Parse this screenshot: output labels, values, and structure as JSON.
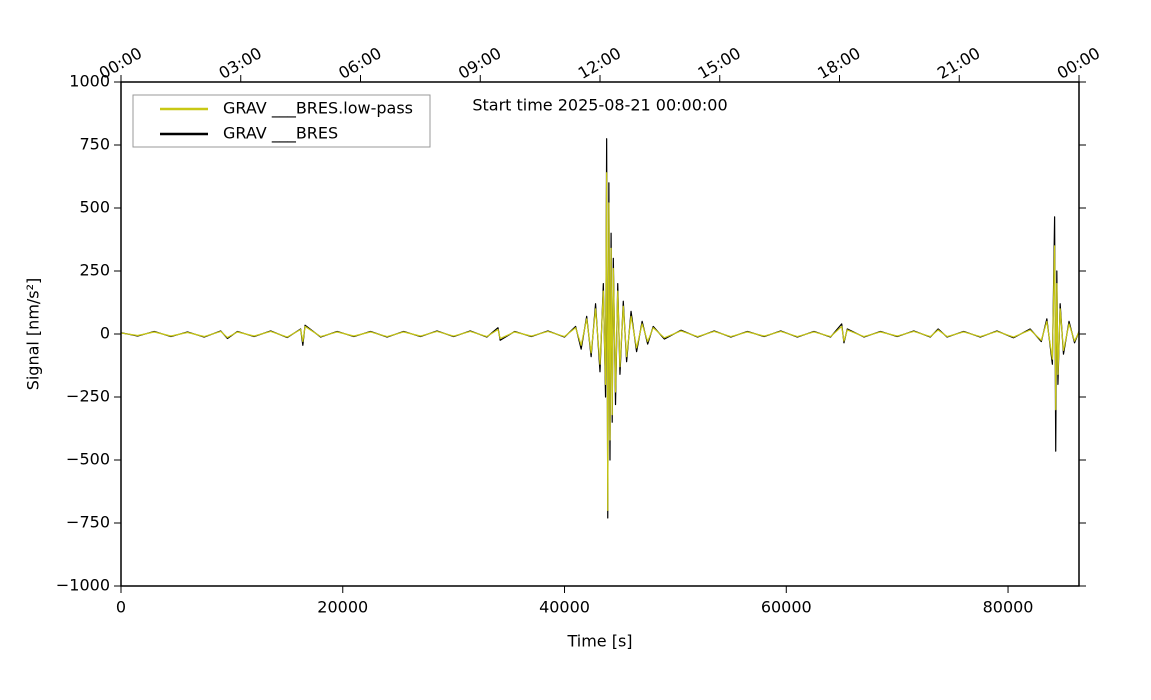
{
  "chart_data": {
    "type": "line",
    "annotation": "Start time 2025-08-21 00:00:00",
    "xlabel": "Time [s]",
    "ylabel": "Signal [nm/s²]",
    "xlim": [
      0,
      86400
    ],
    "ylim": [
      -1000,
      1000
    ],
    "xticks": [
      0,
      20000,
      40000,
      60000,
      80000
    ],
    "yticks": [
      {
        "value": -1000,
        "label": "−1000"
      },
      {
        "value": -750,
        "label": "−750"
      },
      {
        "value": -500,
        "label": "−500"
      },
      {
        "value": -250,
        "label": "−250"
      },
      0,
      250,
      500,
      750,
      1000
    ],
    "x2ticks": [
      {
        "value": 0,
        "label": "00:00"
      },
      {
        "value": 10800,
        "label": "03:00"
      },
      {
        "value": 21600,
        "label": "06:00"
      },
      {
        "value": 32400,
        "label": "09:00"
      },
      {
        "value": 43200,
        "label": "12:00"
      },
      {
        "value": 54000,
        "label": "15:00"
      },
      {
        "value": 64800,
        "label": "18:00"
      },
      {
        "value": 75600,
        "label": "21:00"
      },
      {
        "value": 86400,
        "label": "00:00"
      }
    ],
    "legend": "upper left",
    "x": [
      0,
      1500,
      3000,
      4500,
      6000,
      7500,
      9000,
      9600,
      10500,
      12000,
      13500,
      15000,
      16200,
      16400,
      16600,
      18000,
      19500,
      21000,
      22500,
      24000,
      25500,
      27000,
      28500,
      30000,
      31500,
      33000,
      34000,
      34200,
      35500,
      37000,
      38500,
      40000,
      41000,
      41500,
      42000,
      42400,
      42800,
      43200,
      43500,
      43700,
      43800,
      43900,
      44000,
      44100,
      44200,
      44300,
      44400,
      44600,
      44800,
      45000,
      45300,
      45600,
      46000,
      46500,
      47000,
      47500,
      48000,
      49000,
      50500,
      52000,
      53500,
      55000,
      56500,
      58000,
      59500,
      61000,
      62500,
      64000,
      65000,
      65200,
      65500,
      67000,
      68500,
      70000,
      71500,
      73000,
      73700,
      74500,
      76000,
      77500,
      79000,
      80500,
      82000,
      83000,
      83500,
      84000,
      84200,
      84300,
      84400,
      84500,
      84700,
      85000,
      85500,
      86000,
      86400
    ],
    "series": [
      {
        "name": "GRAV ___BRES.low-pass",
        "color": "#c8c814",
        "values": [
          4,
          -6,
          8,
          -8,
          6,
          -10,
          10,
          -14,
          8,
          -8,
          10,
          -12,
          18,
          -30,
          30,
          -10,
          8,
          -8,
          8,
          -10,
          8,
          -8,
          10,
          -8,
          10,
          -10,
          18,
          -18,
          8,
          -8,
          10,
          -10,
          25,
          -45,
          60,
          -75,
          100,
          -120,
          170,
          -200,
          640,
          -700,
          520,
          -420,
          340,
          -320,
          260,
          -230,
          170,
          -130,
          110,
          -90,
          70,
          -55,
          40,
          -30,
          25,
          -15,
          12,
          -10,
          10,
          -10,
          8,
          -8,
          10,
          -10,
          8,
          -10,
          30,
          -28,
          16,
          -10,
          8,
          -8,
          10,
          -10,
          16,
          -10,
          8,
          -10,
          10,
          -12,
          16,
          -25,
          50,
          -100,
          350,
          -300,
          200,
          -160,
          100,
          -65,
          40,
          -28,
          8
        ]
      },
      {
        "name": "GRAV ___BRES",
        "color": "#000000",
        "values": [
          5,
          -8,
          10,
          -10,
          8,
          -12,
          12,
          -18,
          10,
          -10,
          12,
          -14,
          20,
          -45,
          35,
          -12,
          10,
          -10,
          10,
          -12,
          10,
          -10,
          12,
          -10,
          12,
          -12,
          25,
          -25,
          10,
          -10,
          12,
          -12,
          30,
          -60,
          70,
          -90,
          120,
          -150,
          200,
          -250,
          775,
          -730,
          600,
          -500,
          400,
          -350,
          300,
          -280,
          200,
          -160,
          130,
          -110,
          90,
          -70,
          50,
          -40,
          30,
          -20,
          15,
          -12,
          12,
          -12,
          10,
          -10,
          12,
          -12,
          10,
          -12,
          40,
          -35,
          20,
          -12,
          10,
          -10,
          12,
          -12,
          20,
          -12,
          10,
          -12,
          12,
          -15,
          20,
          -30,
          60,
          -120,
          465,
          -465,
          250,
          -200,
          120,
          -80,
          50,
          -35,
          10
        ]
      }
    ]
  }
}
